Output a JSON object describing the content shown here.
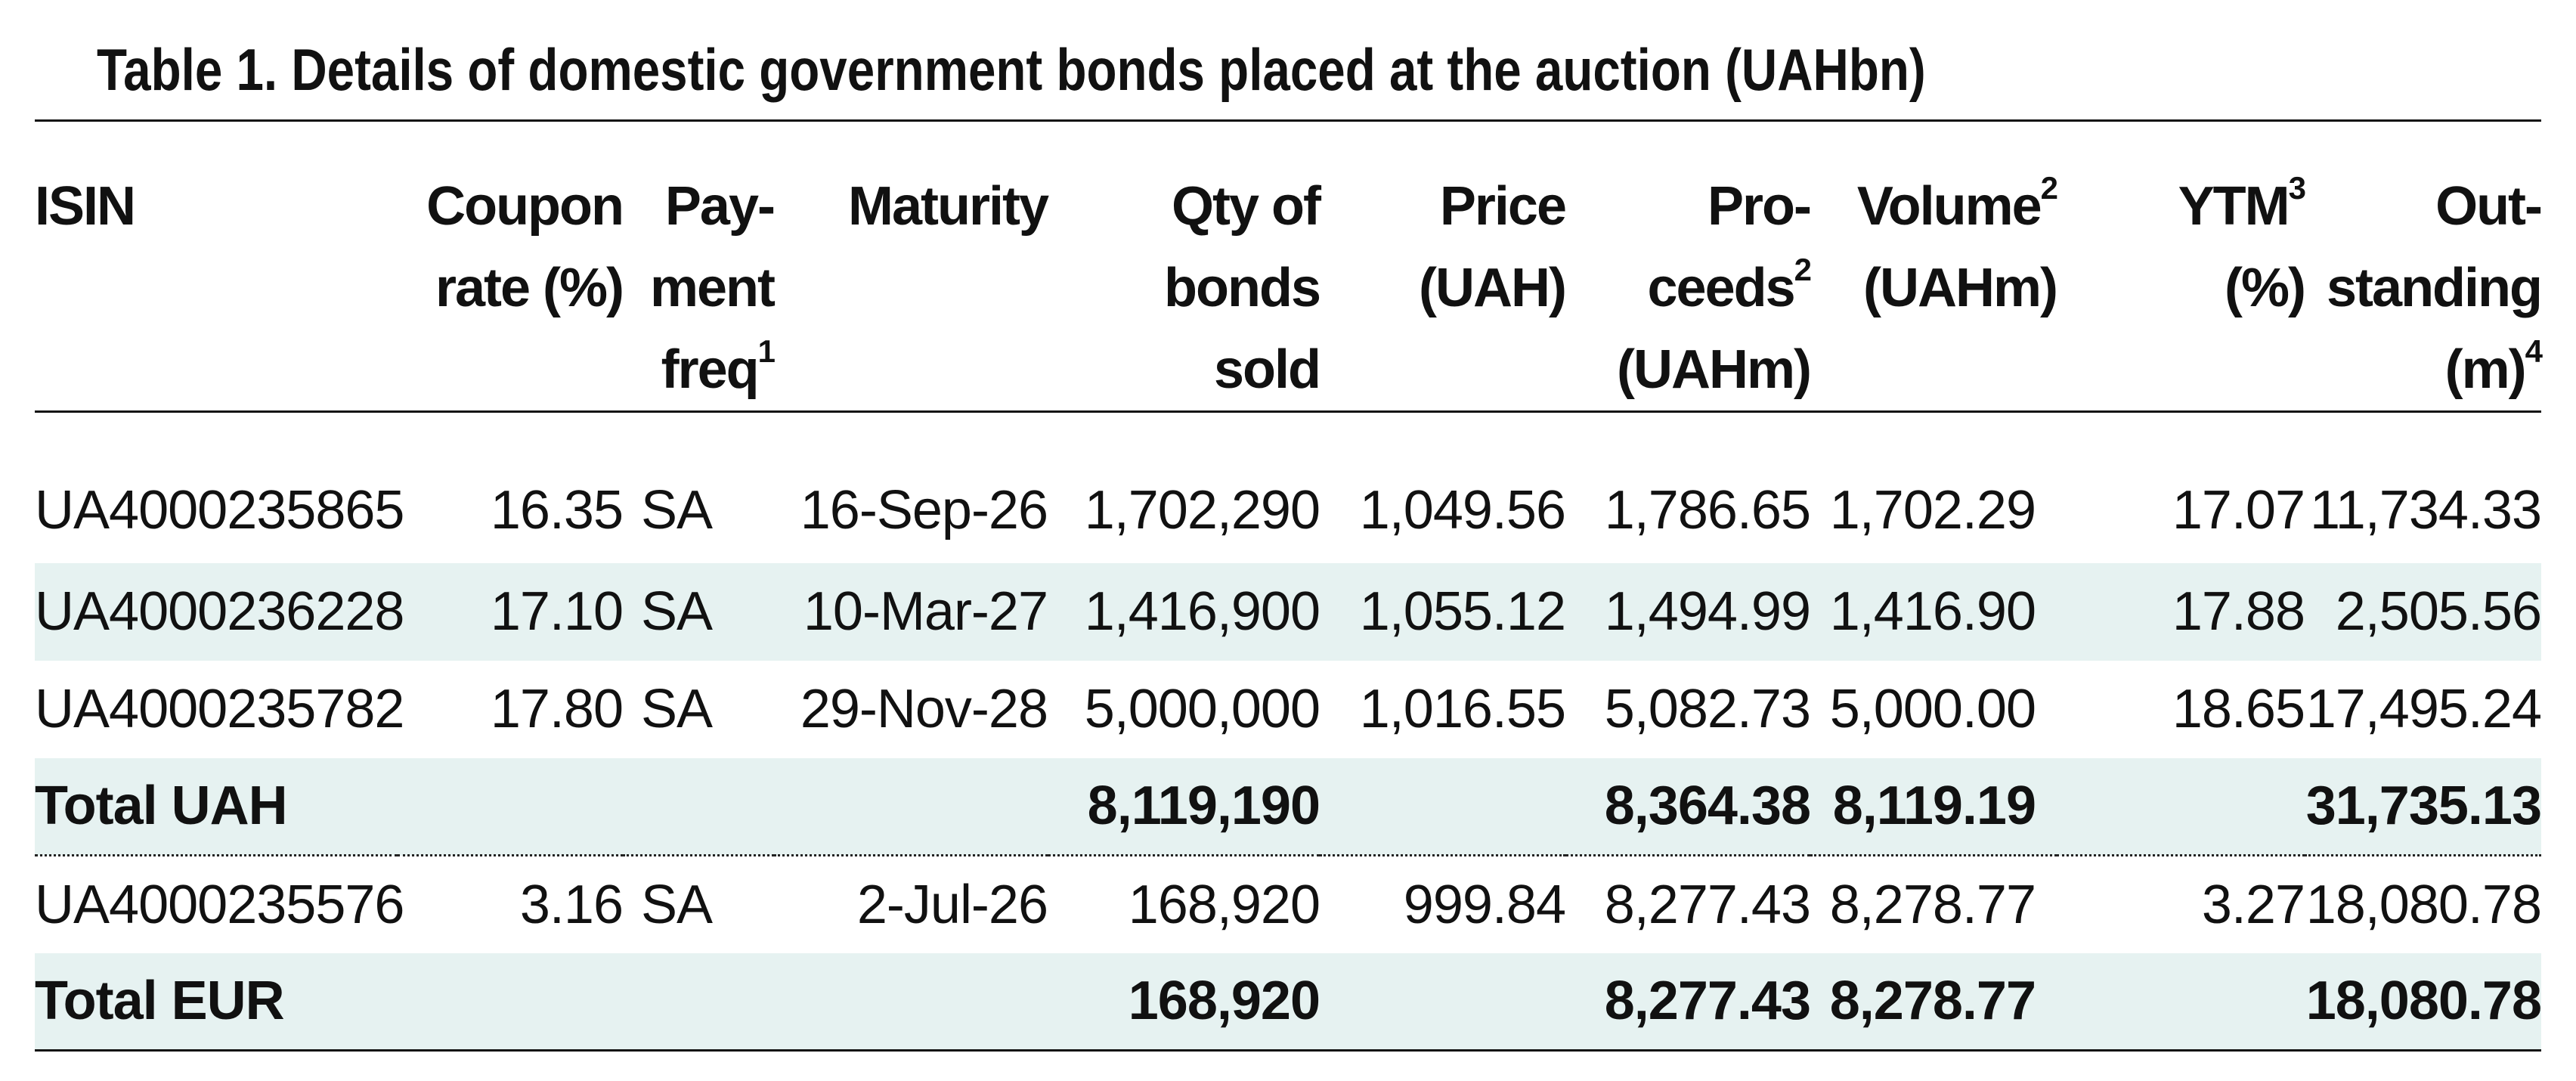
{
  "title": "Table 1. Details of domestic government bonds placed at the auction (UAHbn)",
  "columns": {
    "isin": "ISIN",
    "coupon_l1": "Coupon",
    "coupon_l2": "rate (%)",
    "freq_l1": "Pay-",
    "freq_l2": "ment",
    "freq_l3": "freq",
    "freq_sup": "1",
    "maturity": "Maturity",
    "qty_l1": "Qty of",
    "qty_l2": "bonds",
    "qty_l3": "sold",
    "price_l1": "Price",
    "price_l2": "(UAH)",
    "proceeds_l1": "Pro-",
    "proceeds_l2": "ceeds",
    "proceeds_sup": "2",
    "proceeds_l3": "(UAHm)",
    "volume_l1": "Volume",
    "volume_sup": "2",
    "volume_l2": "(UAHm)",
    "ytm_l1": "YTM",
    "ytm_sup": "3",
    "ytm_l2": "(%)",
    "outstanding_l1": "Out-",
    "outstanding_l2": "standing",
    "outstanding_l3": "(m)",
    "outstanding_sup": "4"
  },
  "rows": [
    {
      "isin": "UA4000235865",
      "coupon": "16.35",
      "freq": "SA",
      "maturity": "16-Sep-26",
      "qty": "1,702,290",
      "price": "1,049.56",
      "proceeds": "1,786.65",
      "volume": "1,702.29",
      "ytm": "17.07",
      "outstanding": "11,734.33"
    },
    {
      "isin": "UA4000236228",
      "coupon": "17.10",
      "freq": "SA",
      "maturity": "10-Mar-27",
      "qty": "1,416,900",
      "price": "1,055.12",
      "proceeds": "1,494.99",
      "volume": "1,416.90",
      "ytm": "17.88",
      "outstanding": "2,505.56"
    },
    {
      "isin": "UA4000235782",
      "coupon": "17.80",
      "freq": "SA",
      "maturity": "29-Nov-28",
      "qty": "5,000,000",
      "price": "1,016.55",
      "proceeds": "5,082.73",
      "volume": "5,000.00",
      "ytm": "18.65",
      "outstanding": "17,495.24"
    },
    {
      "isin": "Total UAH",
      "coupon": "",
      "freq": "",
      "maturity": "",
      "qty": "8,119,190",
      "price": "",
      "proceeds": "8,364.38",
      "volume": "8,119.19",
      "ytm": "",
      "outstanding": "31,735.13"
    },
    {
      "isin": "UA4000235576",
      "coupon": "3.16",
      "freq": "SA",
      "maturity": "2-Jul-26",
      "qty": "168,920",
      "price": "999.84",
      "proceeds": "8,277.43",
      "volume": "8,278.77",
      "ytm": "3.27",
      "outstanding": "18,080.78"
    },
    {
      "isin": "Total EUR",
      "coupon": "",
      "freq": "",
      "maturity": "",
      "qty": "168,920",
      "price": "",
      "proceeds": "8,277.43",
      "volume": "8,278.77",
      "ytm": "",
      "outstanding": "18,080.78"
    }
  ],
  "colors": {
    "row_shade": "#e6f2f1",
    "text": "#111111"
  }
}
